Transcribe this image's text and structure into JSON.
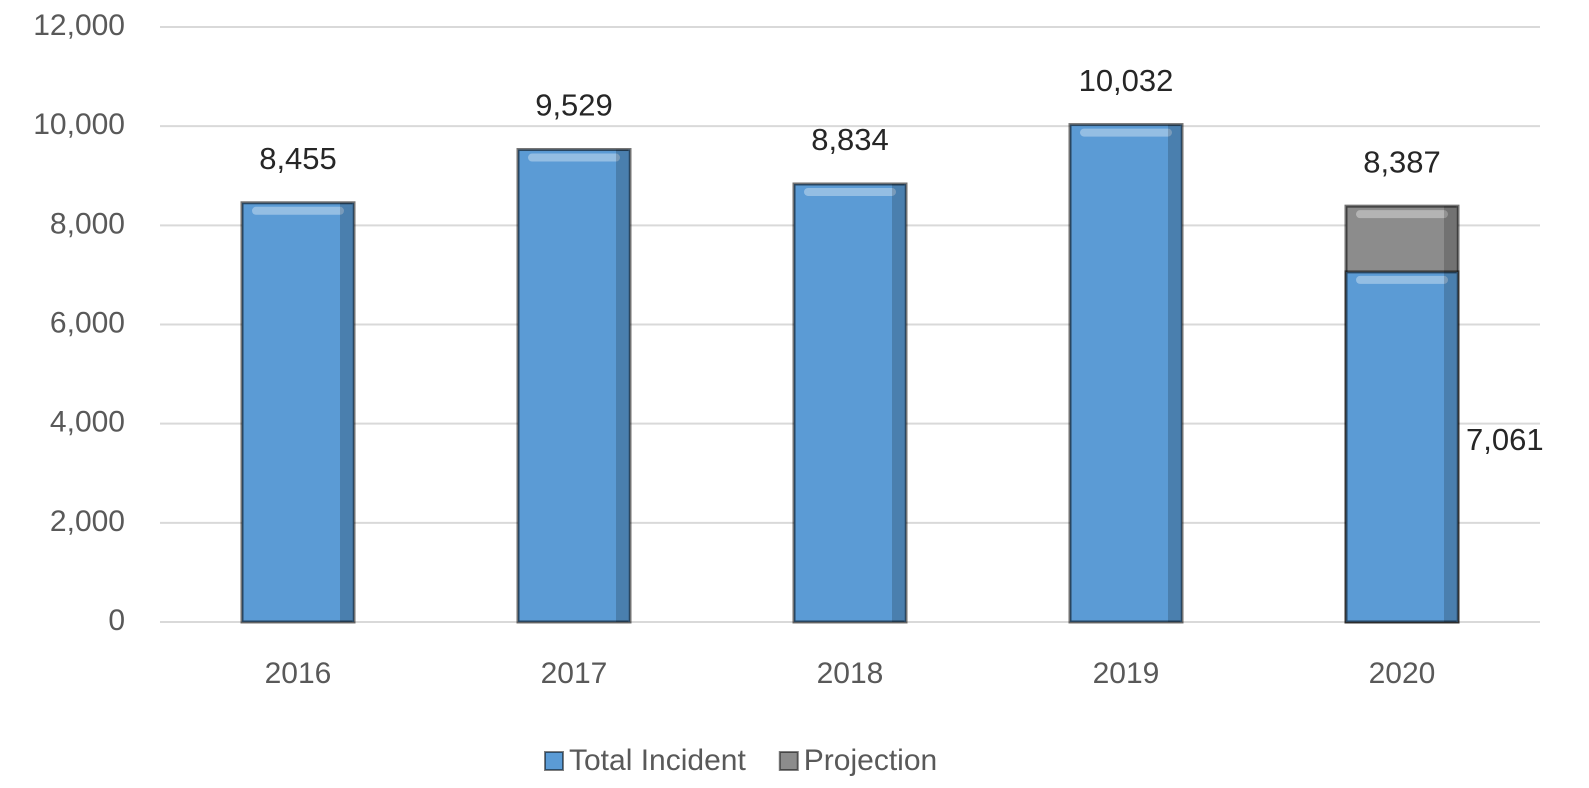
{
  "chart_data": {
    "type": "bar",
    "overlap": true,
    "categories": [
      "2016",
      "2017",
      "2018",
      "2019",
      "2020"
    ],
    "series": [
      {
        "name": "Projection",
        "color": "#8c8c8c",
        "values": [
          null,
          null,
          null,
          null,
          8387
        ],
        "value_labels": [
          null,
          null,
          null,
          null,
          "8,387"
        ]
      },
      {
        "name": "Total Incident",
        "color": "#5b9bd5",
        "values": [
          8455,
          9529,
          8834,
          10032,
          7061
        ],
        "value_labels": [
          "8,455",
          "9,529",
          "8,834",
          "10,032",
          "7,061"
        ]
      }
    ],
    "legend_order": [
      1,
      0
    ],
    "ylim": [
      0,
      12000
    ],
    "yticks": [
      0,
      {
        "value": 2000,
        "label": "2,000"
      },
      {
        "value": 4000,
        "label": "4,000"
      },
      {
        "value": 6000,
        "label": "6,000"
      },
      {
        "value": 8000,
        "label": "8,000"
      },
      {
        "value": 10000,
        "label": "10,000"
      },
      {
        "value": 12000,
        "label": "12,000"
      }
    ],
    "grid": true,
    "legend": "bottom"
  }
}
